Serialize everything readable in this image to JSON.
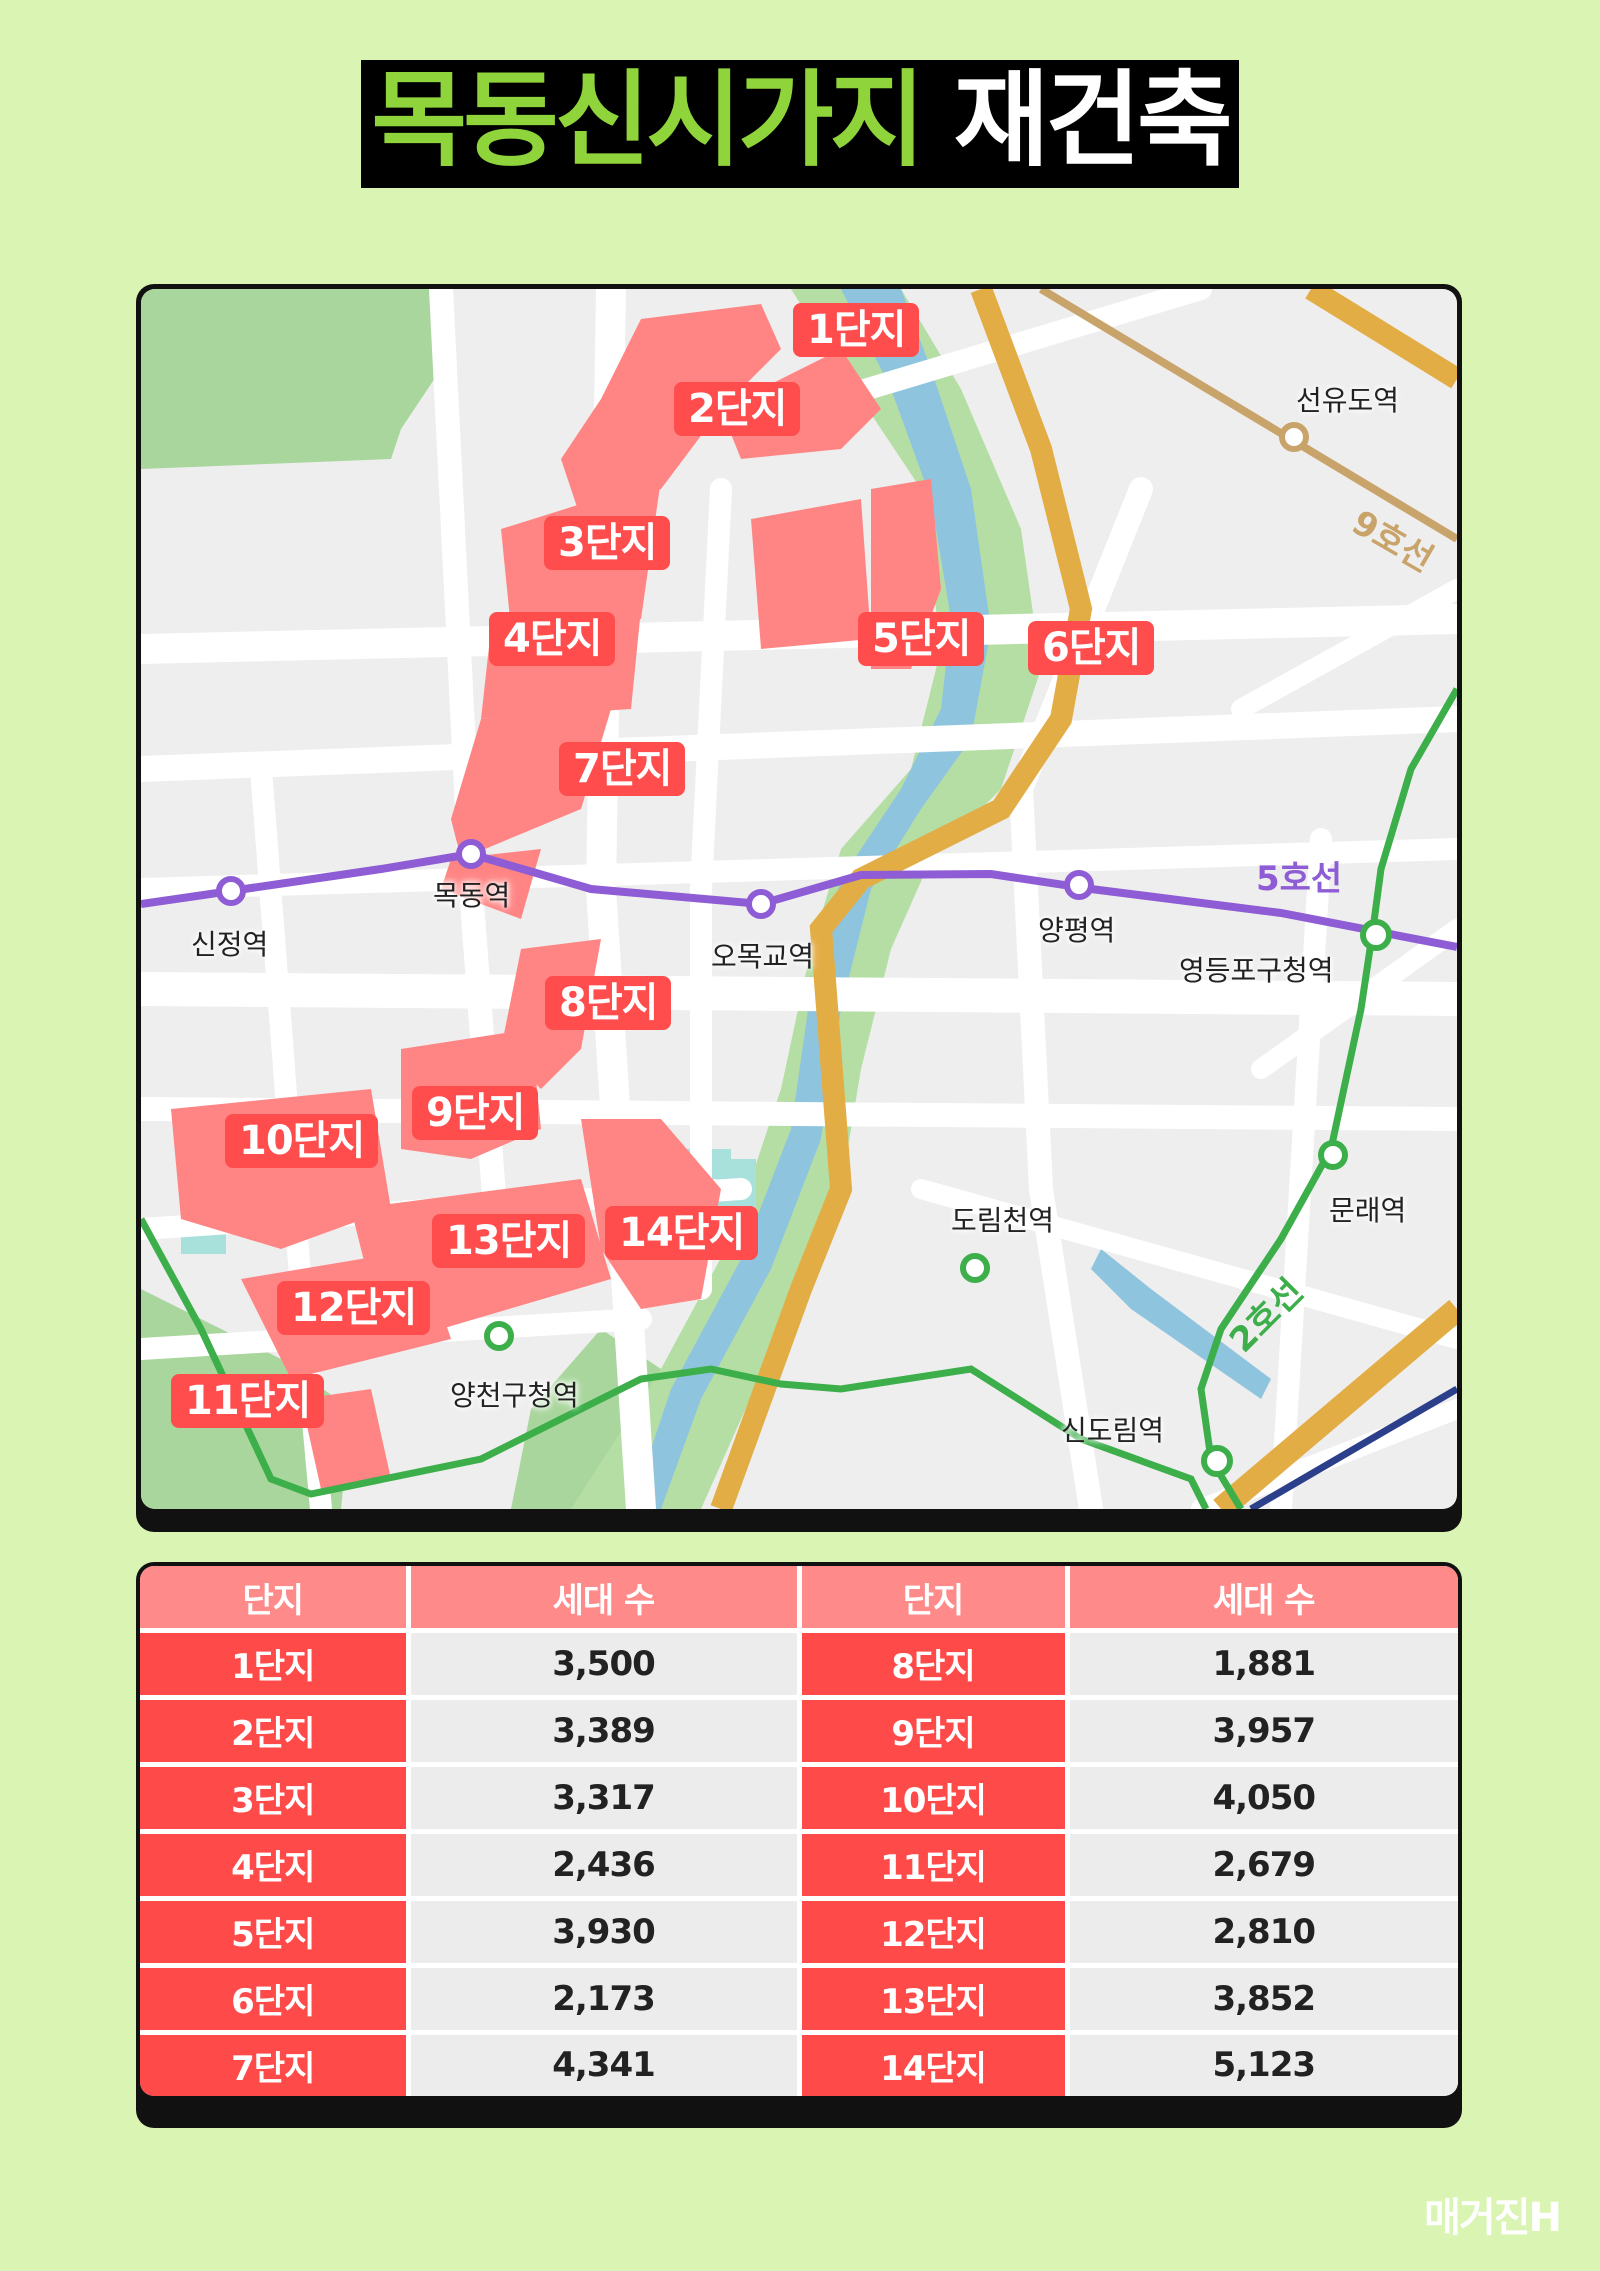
{
  "title": {
    "part1": "목동신시가지",
    "part2": "재건축"
  },
  "map": {
    "complex_labels": [
      "1단지",
      "2단지",
      "3단지",
      "4단지",
      "5단지",
      "6단지",
      "7단지",
      "8단지",
      "9단지",
      "10단지",
      "11단지",
      "12단지",
      "13단지",
      "14단지"
    ],
    "stations": [
      "선유도역",
      "신정역",
      "목동역",
      "오목교역",
      "양평역",
      "영등포구청역",
      "문래역",
      "도림천역",
      "양천구청역",
      "신도림역"
    ],
    "lines": {
      "line9": "9호선",
      "line5": "5호선",
      "line2": "2호선"
    },
    "colors": {
      "line9": "#c9a46a",
      "line5": "#8e5cd4",
      "line2": "#3cae4a",
      "complex": "#ff8585",
      "tag": "#ff4c4c",
      "river": "#8fc4df",
      "park": "#a9d69c"
    }
  },
  "table": {
    "headers": [
      "단지",
      "세대 수",
      "단지",
      "세대 수"
    ],
    "rows": [
      [
        "1단지",
        "3,500",
        "8단지",
        "1,881"
      ],
      [
        "2단지",
        "3,389",
        "9단지",
        "3,957"
      ],
      [
        "3단지",
        "3,317",
        "10단지",
        "4,050"
      ],
      [
        "4단지",
        "2,436",
        "11단지",
        "2,679"
      ],
      [
        "5단지",
        "3,930",
        "12단지",
        "2,810"
      ],
      [
        "6단지",
        "2,173",
        "13단지",
        "3,852"
      ],
      [
        "7단지",
        "4,341",
        "14단지",
        "5,123"
      ]
    ]
  },
  "brand": "매거진H"
}
